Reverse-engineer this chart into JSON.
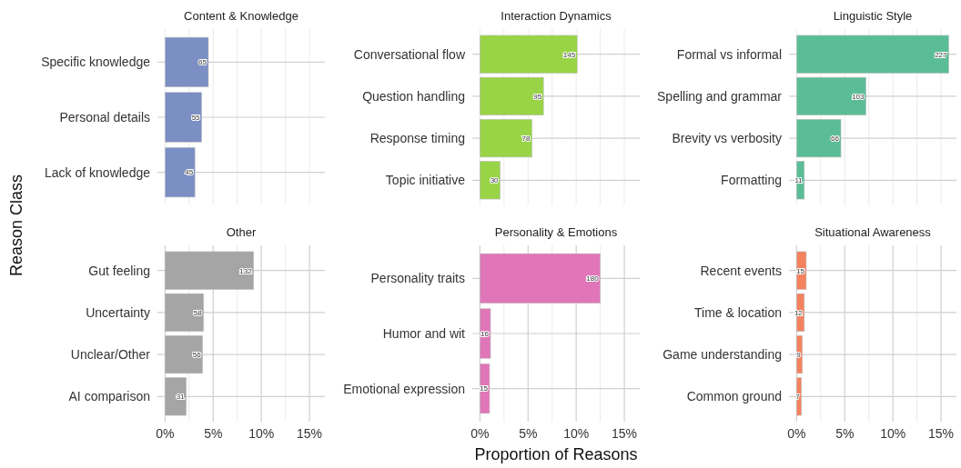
{
  "chart_data": [
    {
      "type": "bar",
      "orientation": "horizontal",
      "title": "Content & Knowledge",
      "ylabel": "Reason Class",
      "categories": [
        "Specific knowledge",
        "Personal details",
        "Lack of knowledge"
      ],
      "values": [
        4.5,
        3.8,
        3.1
      ],
      "annotations": [
        {
          "text": "65",
          "x": 4.5,
          "y": "Specific knowledge"
        },
        {
          "text": "55",
          "x": 3.8,
          "y": "Personal details"
        },
        {
          "text": "45",
          "x": 3.1,
          "y": "Lack of knowledge"
        }
      ],
      "color": "#7b8fc4",
      "xlim": [
        -0.79,
        16.6
      ],
      "xticks": [
        {
          "value": 0,
          "label": null
        },
        {
          "value": 2.5,
          "label": null
        },
        {
          "value": 5,
          "label": null
        },
        {
          "value": 7.5,
          "label": null
        },
        {
          "value": 10,
          "label": null
        },
        {
          "value": 12.5,
          "label": null
        },
        {
          "value": 15,
          "label": null
        }
      ],
      "grid": true,
      "tick_labels": "y"
    },
    {
      "type": "bar",
      "orientation": "horizontal",
      "title": "Interaction Dynamics",
      "categories": [
        "Conversational flow",
        "Question handling",
        "Response timing",
        "Topic initiative"
      ],
      "values": [
        10.1,
        6.6,
        5.4,
        2.1
      ],
      "annotations": [
        {
          "text": "145",
          "x": 10.1,
          "y": "Conversational flow"
        },
        {
          "text": "95",
          "x": 6.6,
          "y": "Question handling"
        },
        {
          "text": "78",
          "x": 5.4,
          "y": "Response timing"
        },
        {
          "text": "30",
          "x": 2.1,
          "y": "Topic initiative"
        }
      ],
      "color": "#98d446",
      "xlim": [
        -0.79,
        16.6
      ],
      "xticks": [
        {
          "value": 0,
          "label": null
        },
        {
          "value": 2.5,
          "label": null
        },
        {
          "value": 5,
          "label": null
        },
        {
          "value": 7.5,
          "label": null
        },
        {
          "value": 10,
          "label": null
        },
        {
          "value": 12.5,
          "label": null
        },
        {
          "value": 15,
          "label": null
        }
      ],
      "grid": true,
      "tick_labels": "y"
    },
    {
      "type": "bar",
      "orientation": "horizontal",
      "title": "Linguistic Style",
      "categories": [
        "Formal vs informal",
        "Spelling and grammar",
        "Brevity vs verbosity",
        "Formatting"
      ],
      "values": [
        15.8,
        7.2,
        4.6,
        0.8
      ],
      "annotations": [
        {
          "text": "227",
          "x": 15.8,
          "y": "Formal vs informal"
        },
        {
          "text": "103",
          "x": 7.2,
          "y": "Spelling and grammar"
        },
        {
          "text": "66",
          "x": 4.6,
          "y": "Brevity vs verbosity"
        },
        {
          "text": "11",
          "x": 0.8,
          "y": "Formatting"
        }
      ],
      "color": "#5bbd97",
      "xlim": [
        -0.79,
        16.6
      ],
      "xticks": [
        {
          "value": 0,
          "label": null
        },
        {
          "value": 2.5,
          "label": null
        },
        {
          "value": 5,
          "label": null
        },
        {
          "value": 7.5,
          "label": null
        },
        {
          "value": 10,
          "label": null
        },
        {
          "value": 12.5,
          "label": null
        },
        {
          "value": 15,
          "label": null
        }
      ],
      "grid": true,
      "tick_labels": "y"
    },
    {
      "type": "bar",
      "orientation": "horizontal",
      "title": "Other",
      "categories": [
        "Gut feeling",
        "Uncertainty",
        "Unclear/Other",
        "AI comparison"
      ],
      "values": [
        9.2,
        4.0,
        3.9,
        2.2
      ],
      "annotations": [
        {
          "text": "132",
          "x": 9.2,
          "y": "Gut feeling"
        },
        {
          "text": "58",
          "x": 4.0,
          "y": "Uncertainty"
        },
        {
          "text": "56",
          "x": 3.9,
          "y": "Unclear/Other"
        },
        {
          "text": "31",
          "x": 2.2,
          "y": "AI comparison"
        }
      ],
      "color": "#a5a5a5",
      "xlim": [
        -0.79,
        16.6
      ],
      "xticks": [
        {
          "value": 0,
          "label": "0%"
        },
        {
          "value": 2.5,
          "label": null
        },
        {
          "value": 5,
          "label": "5%"
        },
        {
          "value": 7.5,
          "label": null
        },
        {
          "value": 10,
          "label": "10%"
        },
        {
          "value": 12.5,
          "label": null
        },
        {
          "value": 15,
          "label": "15%"
        }
      ],
      "grid": true
    },
    {
      "type": "bar",
      "orientation": "horizontal",
      "title": "Personality & Emotions",
      "xlabel": "Proportion of Reasons",
      "categories": [
        "Personality traits",
        "Humor and wit",
        "Emotional expression"
      ],
      "values": [
        12.5,
        1.1,
        1.0
      ],
      "annotations": [
        {
          "text": "180",
          "x": 12.5,
          "y": "Personality traits"
        },
        {
          "text": "16",
          "x": 1.1,
          "y": "Humor and wit"
        },
        {
          "text": "15",
          "x": 1.0,
          "y": "Emotional expression"
        }
      ],
      "color": "#e076b8",
      "xlim": [
        -0.79,
        16.6
      ],
      "xticks": [
        {
          "value": 0,
          "label": "0%"
        },
        {
          "value": 2.5,
          "label": null
        },
        {
          "value": 5,
          "label": "5%"
        },
        {
          "value": 7.5,
          "label": null
        },
        {
          "value": 10,
          "label": "10%"
        },
        {
          "value": 12.5,
          "label": null
        },
        {
          "value": 15,
          "label": "15%"
        }
      ],
      "grid": true
    },
    {
      "type": "bar",
      "orientation": "horizontal",
      "title": "Situational Awareness",
      "categories": [
        "Recent events",
        "Time & location",
        "Game understanding",
        "Common ground"
      ],
      "values": [
        1.0,
        0.8,
        0.6,
        0.5
      ],
      "annotations": [
        {
          "text": "15",
          "x": 1.0,
          "y": "Recent events"
        },
        {
          "text": "12",
          "x": 0.8,
          "y": "Time & location"
        },
        {
          "text": "9",
          "x": 0.6,
          "y": "Game understanding"
        },
        {
          "text": "7",
          "x": 0.5,
          "y": "Common ground"
        }
      ],
      "color": "#f5825f",
      "xlim": [
        -0.79,
        16.6
      ],
      "xticks": [
        {
          "value": 0,
          "label": "0%"
        },
        {
          "value": 2.5,
          "label": null
        },
        {
          "value": 5,
          "label": "5%"
        },
        {
          "value": 7.5,
          "label": null
        },
        {
          "value": 10,
          "label": "10%"
        },
        {
          "value": 12.5,
          "label": null
        },
        {
          "value": 15,
          "label": "15%"
        }
      ],
      "grid": true
    }
  ]
}
